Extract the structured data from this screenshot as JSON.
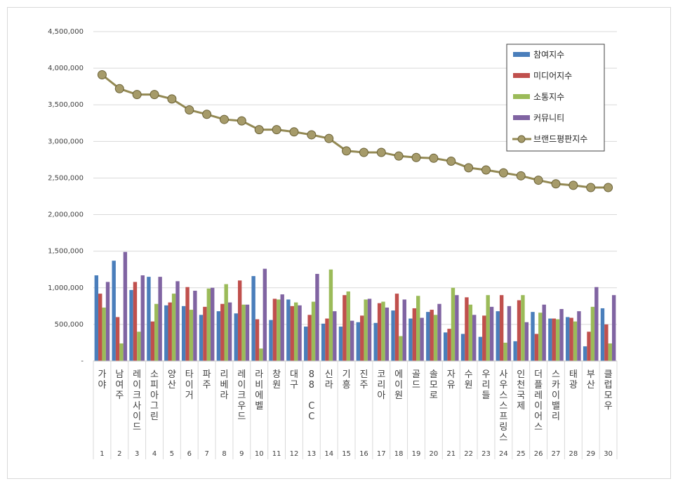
{
  "chart_data": {
    "type": "bar",
    "categories": [
      "가야",
      "남여주",
      "레이크사이드",
      "소피아그린",
      "양산",
      "타이거",
      "파주",
      "리베라",
      "레이크우드",
      "라비에벨",
      "창원",
      "대구",
      "88 CC",
      "신라",
      "기흥",
      "진주",
      "코리아",
      "에이원",
      "골드",
      "솔모로",
      "자유",
      "수원",
      "우리들",
      "사우스스프링스",
      "인천국제",
      "더플레이어스",
      "스카이밸리",
      "태광",
      "부산",
      "클럽모우"
    ],
    "ranks": [
      "1",
      "2",
      "3",
      "4",
      "5",
      "6",
      "7",
      "8",
      "9",
      "10",
      "11",
      "12",
      "13",
      "14",
      "15",
      "16",
      "17",
      "18",
      "19",
      "20",
      "21",
      "22",
      "23",
      "24",
      "25",
      "26",
      "27",
      "28",
      "29",
      "30"
    ],
    "y_ticks": [
      "-",
      "500,000",
      "1,000,000",
      "1,500,000",
      "2,000,000",
      "2,500,000",
      "3,000,000",
      "3,500,000",
      "4,000,000",
      "4,500,000"
    ],
    "ylim": [
      0,
      4500000
    ],
    "grid": true,
    "legend_position": "top-right",
    "series": [
      {
        "name": "참여지수",
        "type": "bar",
        "color": "#4a7ebb",
        "values": [
          1170000,
          1370000,
          970000,
          1150000,
          760000,
          750000,
          630000,
          680000,
          650000,
          1160000,
          560000,
          840000,
          470000,
          510000,
          470000,
          530000,
          520000,
          690000,
          580000,
          670000,
          390000,
          370000,
          330000,
          680000,
          270000,
          670000,
          580000,
          600000,
          200000,
          720000
        ]
      },
      {
        "name": "미디어지수",
        "type": "bar",
        "color": "#c0504d",
        "values": [
          920000,
          600000,
          1080000,
          540000,
          800000,
          1010000,
          740000,
          780000,
          1100000,
          570000,
          850000,
          750000,
          630000,
          580000,
          900000,
          620000,
          790000,
          920000,
          720000,
          700000,
          440000,
          870000,
          620000,
          900000,
          830000,
          370000,
          580000,
          590000,
          400000,
          500000
        ]
      },
      {
        "name": "소통지수",
        "type": "bar",
        "color": "#9bbb59",
        "values": [
          730000,
          240000,
          400000,
          780000,
          920000,
          700000,
          990000,
          1050000,
          770000,
          170000,
          840000,
          800000,
          810000,
          1250000,
          950000,
          840000,
          810000,
          340000,
          890000,
          630000,
          1000000,
          770000,
          900000,
          250000,
          900000,
          660000,
          570000,
          540000,
          740000,
          240000
        ]
      },
      {
        "name": "커뮤니티",
        "type": "bar",
        "color": "#8064a2",
        "values": [
          1080000,
          1490000,
          1170000,
          1150000,
          1090000,
          960000,
          1000000,
          800000,
          770000,
          1260000,
          910000,
          760000,
          1190000,
          680000,
          550000,
          850000,
          730000,
          840000,
          590000,
          780000,
          900000,
          630000,
          740000,
          750000,
          530000,
          770000,
          710000,
          680000,
          1010000,
          900000
        ]
      },
      {
        "name": "브랜드평판지수",
        "type": "line",
        "color": "#938953",
        "values": [
          3910000,
          3720000,
          3640000,
          3640000,
          3580000,
          3430000,
          3370000,
          3300000,
          3280000,
          3160000,
          3160000,
          3130000,
          3090000,
          3040000,
          2870000,
          2850000,
          2850000,
          2800000,
          2780000,
          2770000,
          2730000,
          2640000,
          2610000,
          2570000,
          2530000,
          2470000,
          2420000,
          2400000,
          2370000,
          2370000
        ]
      }
    ]
  }
}
